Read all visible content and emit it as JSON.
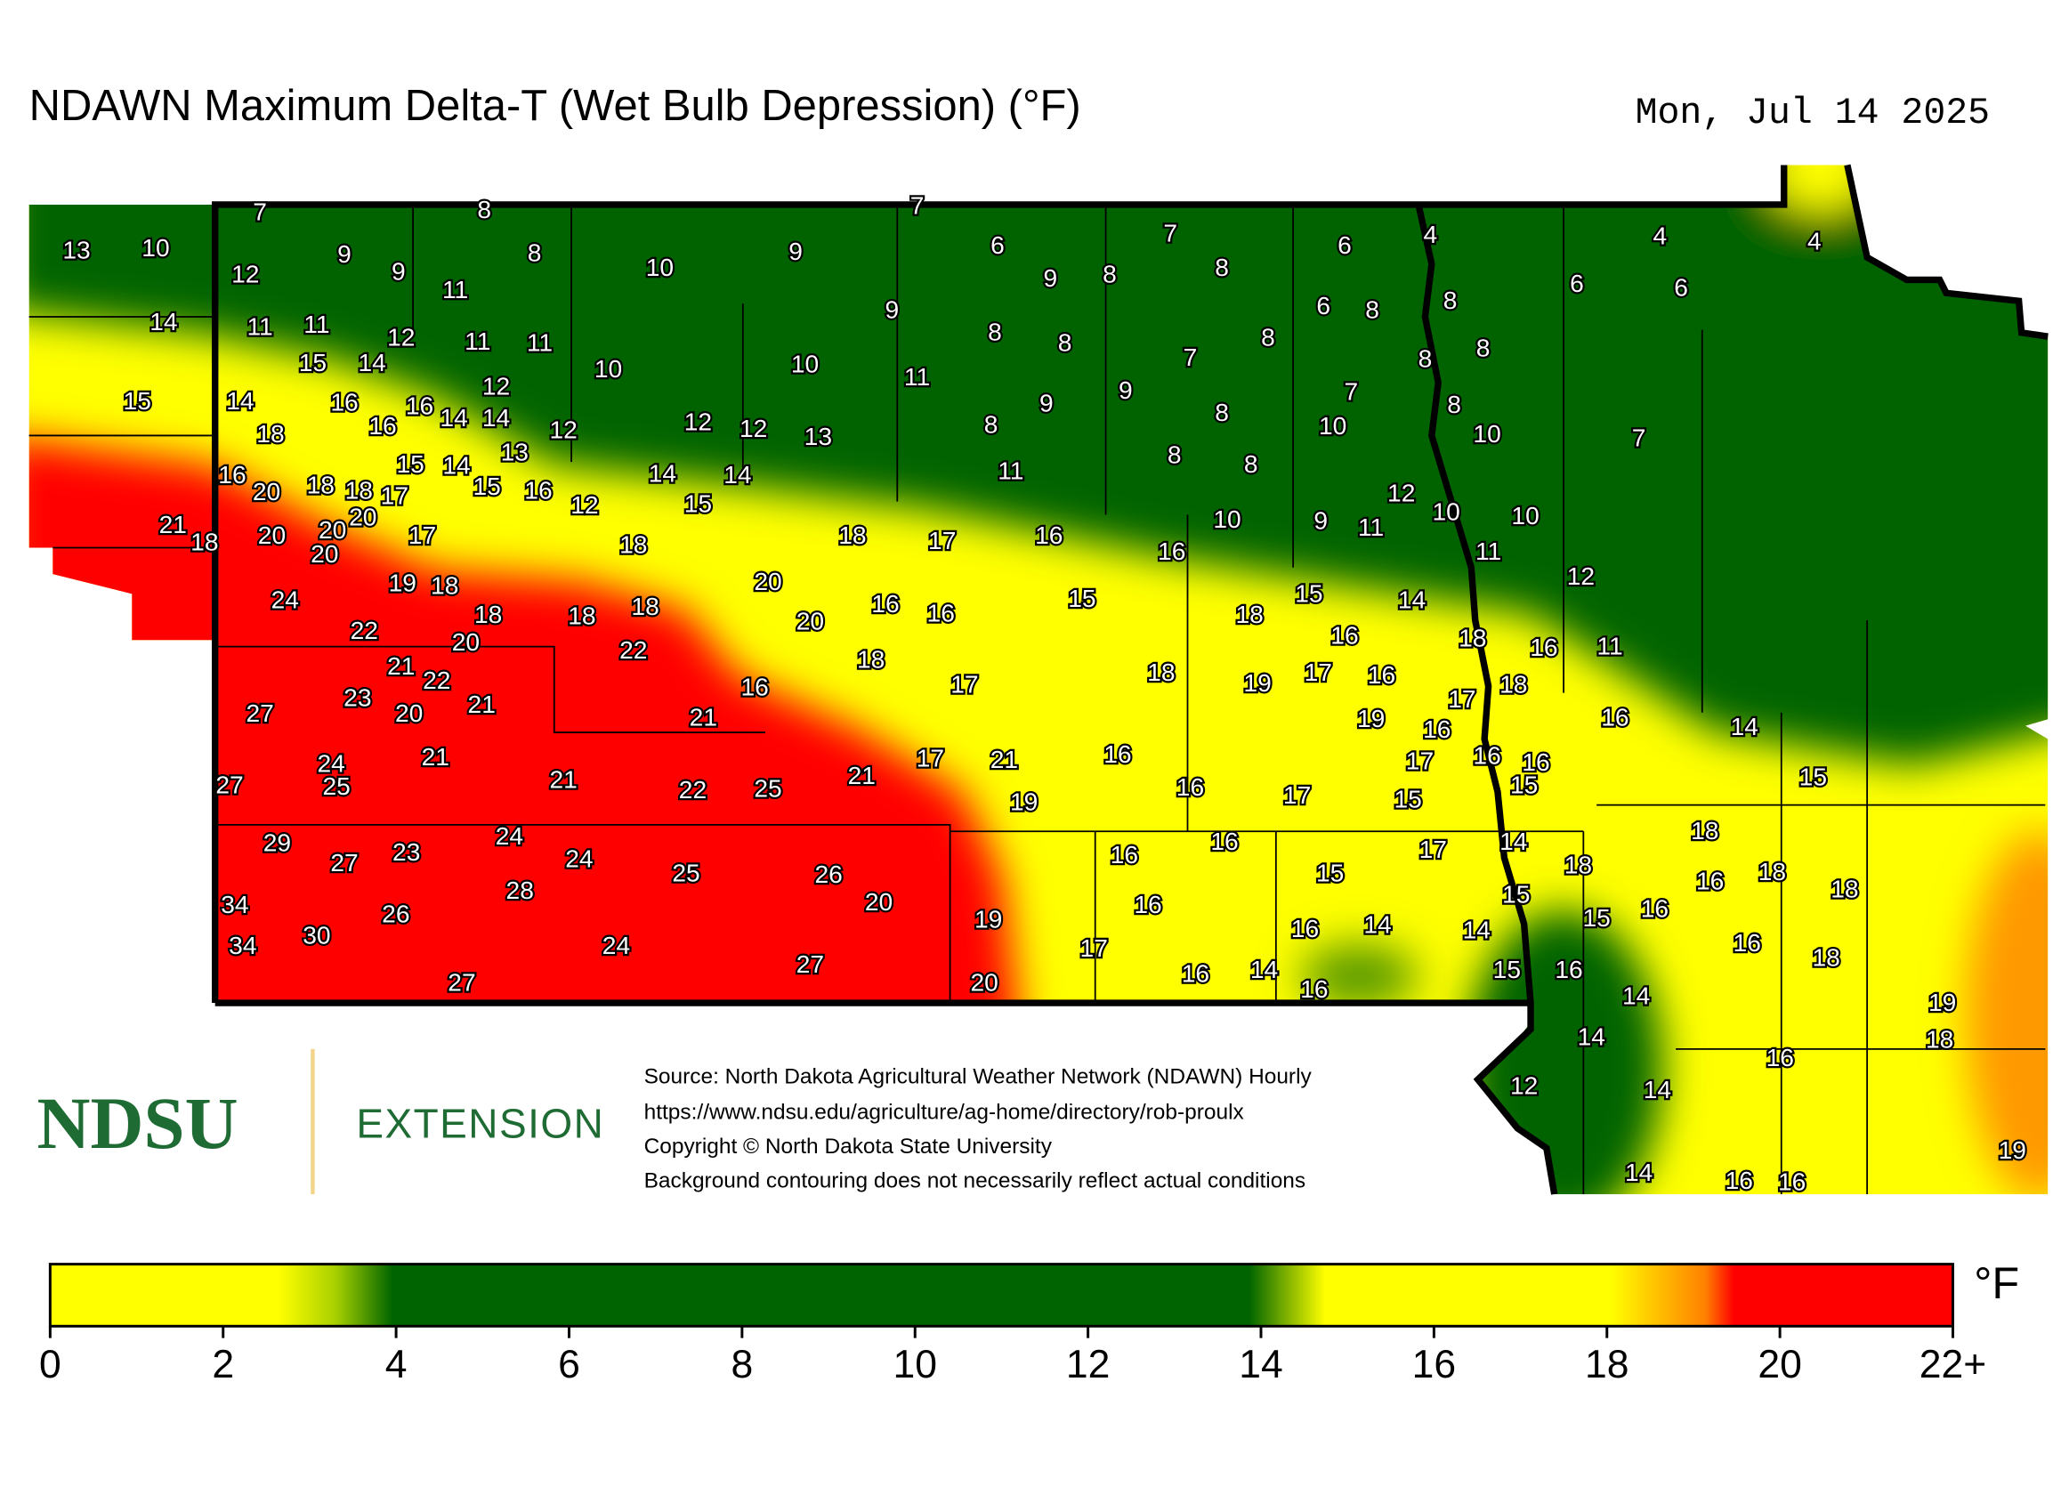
{
  "header": {
    "title": "NDAWN Maximum Delta-T (Wet Bulb Depression) (°F)",
    "date": "Mon, Jul 14 2025"
  },
  "stations": [
    7,
    8,
    7,
    13,
    10,
    9,
    9,
    12,
    8,
    11,
    10,
    9,
    6,
    7,
    6,
    4,
    4,
    4,
    9,
    8,
    8,
    6,
    6,
    6,
    8,
    8,
    14,
    11,
    11,
    12,
    11,
    11,
    9,
    8,
    8,
    8,
    7,
    8,
    8,
    15,
    14,
    10,
    10,
    11,
    15,
    14,
    16,
    16,
    12,
    9,
    9,
    7,
    8,
    18,
    16,
    14,
    14,
    12,
    12,
    12,
    13,
    8,
    8,
    10,
    10,
    7,
    16,
    15,
    14,
    13,
    14,
    14,
    11,
    8,
    8,
    20,
    18,
    18,
    17,
    15,
    16,
    12,
    15,
    12,
    21,
    18,
    20,
    20,
    20,
    20,
    17,
    18,
    18,
    17,
    16,
    16,
    10,
    9,
    11,
    10,
    10,
    11,
    12,
    19,
    18,
    20,
    24,
    18,
    18,
    18,
    20,
    16,
    16,
    15,
    18,
    15,
    14,
    22,
    20,
    22,
    18,
    16,
    18,
    16,
    11,
    21,
    22,
    23,
    16,
    17,
    18,
    19,
    17,
    16,
    17,
    18,
    27,
    20,
    21,
    21,
    19,
    16,
    16,
    14,
    21,
    24,
    25,
    27,
    21,
    22,
    25,
    21,
    17,
    21,
    16,
    17,
    16,
    16,
    15,
    15,
    19,
    16,
    17,
    15,
    29,
    27,
    23,
    24,
    24,
    16,
    16,
    17,
    14,
    18,
    25,
    26,
    28,
    18,
    16,
    18,
    15,
    18,
    34,
    20,
    16,
    15,
    16,
    26,
    19,
    15,
    16,
    14,
    14,
    34,
    30,
    24,
    17,
    16,
    18,
    27,
    27,
    20,
    16,
    14,
    16,
    15,
    16,
    14,
    19,
    14,
    18,
    16,
    12,
    14,
    19,
    14,
    16,
    16
  ],
  "logo": {
    "name": "NDSU",
    "unit": "EXTENSION"
  },
  "source": [
    "Source: North Dakota Agricultural Weather Network (NDAWN) Hourly",
    "https://www.ndsu.edu/agriculture/ag-home/directory/rob-proulx",
    "Copyright © North Dakota State University",
    "Background contouring does not necessarily reflect actual conditions"
  ],
  "legend": {
    "unit": "°F",
    "range": [
      0,
      22
    ],
    "ticks": [
      0,
      2,
      4,
      6,
      8,
      10,
      12,
      14,
      16,
      18,
      20,
      {
        "value": 22,
        "label": "22+"
      }
    ]
  }
}
